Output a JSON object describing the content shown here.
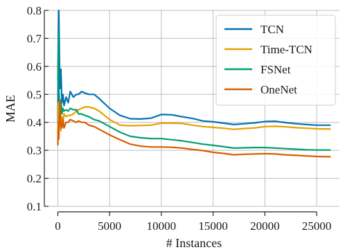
{
  "chart_data": {
    "type": "line",
    "xlabel": "# Instances",
    "ylabel": "MAE",
    "xlim": [
      -900,
      27200
    ],
    "ylim": [
      0.1,
      0.8
    ],
    "xticks": [
      0,
      5000,
      10000,
      15000,
      20000,
      25000
    ],
    "yticks": [
      0.1,
      0.2,
      0.3,
      0.4,
      0.5,
      0.6,
      0.7,
      0.8
    ],
    "grid": true,
    "legend_position": "top-right",
    "series": [
      {
        "name": "TCN",
        "color": "#0072b2",
        "x": [
          0,
          50,
          100,
          200,
          300,
          400,
          500,
          600,
          800,
          1000,
          1200,
          1500,
          1800,
          2000,
          2300,
          2600,
          3000,
          3500,
          4000,
          5000,
          6000,
          7000,
          8000,
          9000,
          10000,
          11000,
          12000,
          13000,
          14000,
          15000,
          16000,
          17000,
          18000,
          19000,
          20000,
          21000,
          22000,
          23000,
          24000,
          25000,
          26300
        ],
        "y": [
          0.4,
          0.69,
          0.8,
          0.52,
          0.59,
          0.47,
          0.5,
          0.46,
          0.49,
          0.47,
          0.51,
          0.49,
          0.5,
          0.5,
          0.51,
          0.505,
          0.5,
          0.5,
          0.485,
          0.45,
          0.425,
          0.413,
          0.412,
          0.415,
          0.428,
          0.427,
          0.42,
          0.414,
          0.405,
          0.402,
          0.397,
          0.392,
          0.395,
          0.398,
          0.403,
          0.404,
          0.399,
          0.395,
          0.392,
          0.39,
          0.39
        ]
      },
      {
        "name": "Time-TCN",
        "color": "#e69f00",
        "x": [
          0,
          50,
          100,
          200,
          300,
          400,
          500,
          600,
          800,
          1000,
          1200,
          1500,
          1800,
          2000,
          2300,
          2600,
          3000,
          3500,
          4000,
          5000,
          6000,
          7000,
          8000,
          9000,
          10000,
          11000,
          12000,
          13000,
          14000,
          15000,
          16000,
          17000,
          18000,
          19000,
          20000,
          21000,
          22000,
          23000,
          24000,
          25000,
          26300
        ],
        "y": [
          0.32,
          0.47,
          0.38,
          0.44,
          0.37,
          0.42,
          0.4,
          0.43,
          0.42,
          0.425,
          0.425,
          0.43,
          0.44,
          0.445,
          0.45,
          0.455,
          0.455,
          0.45,
          0.44,
          0.41,
          0.39,
          0.388,
          0.389,
          0.39,
          0.397,
          0.397,
          0.396,
          0.39,
          0.385,
          0.382,
          0.379,
          0.375,
          0.378,
          0.38,
          0.385,
          0.386,
          0.384,
          0.381,
          0.379,
          0.377,
          0.376
        ]
      },
      {
        "name": "FSNet",
        "color": "#009e73",
        "x": [
          0,
          50,
          100,
          200,
          300,
          400,
          500,
          600,
          800,
          1000,
          1200,
          1500,
          1800,
          2000,
          2300,
          2600,
          3000,
          3500,
          4000,
          5000,
          6000,
          7000,
          8000,
          9000,
          10000,
          11000,
          12000,
          13000,
          14000,
          15000,
          16000,
          17000,
          18000,
          19000,
          20000,
          21000,
          22000,
          23000,
          24000,
          25000,
          26300
        ],
        "y": [
          0.55,
          0.73,
          0.52,
          0.45,
          0.48,
          0.43,
          0.45,
          0.44,
          0.445,
          0.44,
          0.45,
          0.445,
          0.445,
          0.43,
          0.43,
          0.425,
          0.42,
          0.41,
          0.405,
          0.385,
          0.365,
          0.35,
          0.345,
          0.342,
          0.342,
          0.338,
          0.334,
          0.328,
          0.322,
          0.318,
          0.313,
          0.308,
          0.309,
          0.31,
          0.31,
          0.308,
          0.306,
          0.304,
          0.302,
          0.301,
          0.301
        ]
      },
      {
        "name": "OneNet",
        "color": "#d55e00",
        "x": [
          0,
          50,
          100,
          200,
          300,
          400,
          500,
          600,
          800,
          1000,
          1200,
          1500,
          1800,
          2000,
          2300,
          2600,
          3000,
          3500,
          4000,
          5000,
          6000,
          7000,
          8000,
          9000,
          10000,
          11000,
          12000,
          13000,
          14000,
          15000,
          16000,
          17000,
          18000,
          19000,
          20000,
          21000,
          22000,
          23000,
          24000,
          25000,
          26300
        ],
        "y": [
          0.32,
          0.4,
          0.34,
          0.48,
          0.39,
          0.38,
          0.41,
          0.38,
          0.4,
          0.4,
          0.41,
          0.405,
          0.4,
          0.405,
          0.4,
          0.4,
          0.39,
          0.385,
          0.375,
          0.355,
          0.338,
          0.322,
          0.315,
          0.312,
          0.312,
          0.311,
          0.308,
          0.303,
          0.299,
          0.293,
          0.289,
          0.284,
          0.286,
          0.287,
          0.288,
          0.287,
          0.284,
          0.282,
          0.28,
          0.278,
          0.277
        ]
      }
    ]
  }
}
